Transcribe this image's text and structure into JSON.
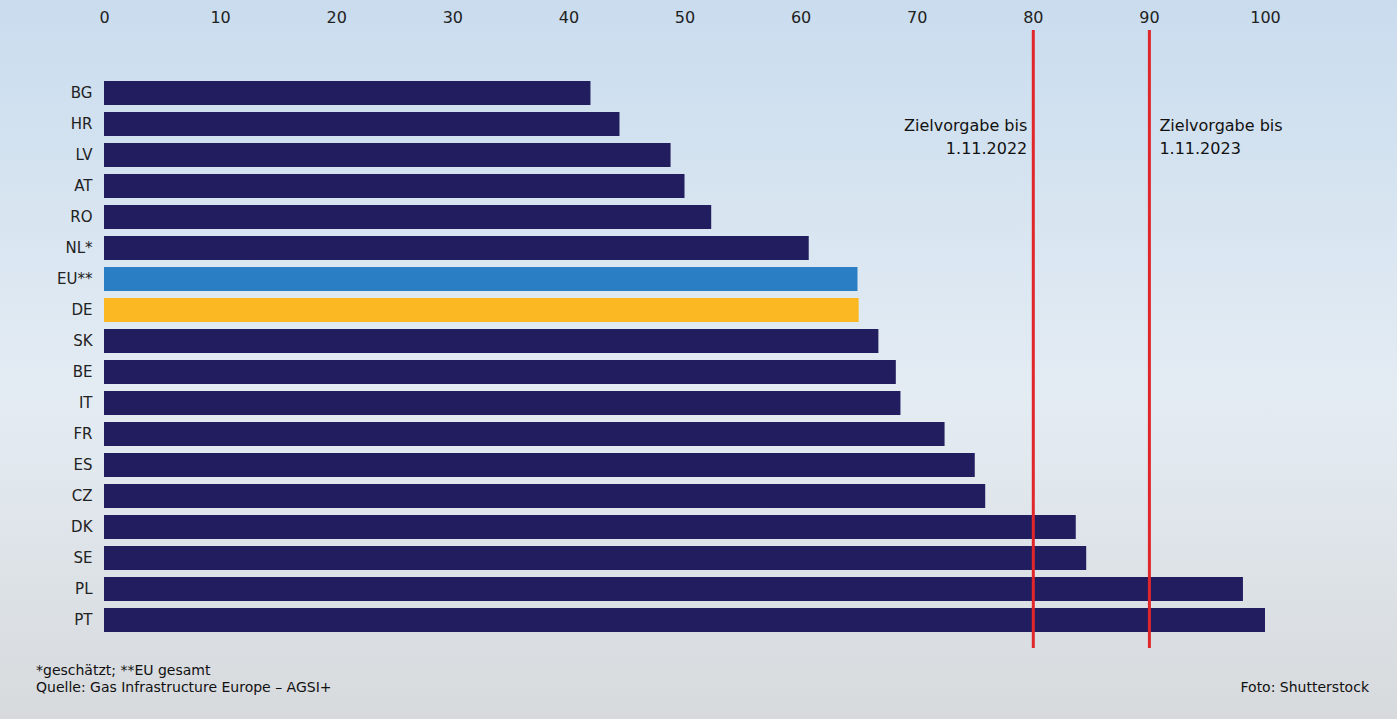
{
  "chart_data": {
    "type": "bar",
    "orientation": "horizontal",
    "categories": [
      "BG",
      "HR",
      "LV",
      "AT",
      "RO",
      "NL*",
      "EU**",
      "DE",
      "SK",
      "BE",
      "IT",
      "FR",
      "ES",
      "CZ",
      "DK",
      "SE",
      "PL",
      "PT"
    ],
    "values": [
      41.9,
      44.4,
      48.8,
      50.0,
      52.3,
      60.7,
      64.9,
      65.0,
      66.7,
      68.2,
      68.6,
      72.4,
      75.0,
      75.9,
      83.7,
      84.6,
      98.1,
      100
    ],
    "colors": [
      "#221d5e",
      "#221d5e",
      "#221d5e",
      "#221d5e",
      "#221d5e",
      "#221d5e",
      "#2a7fc4",
      "#fbb823",
      "#221d5e",
      "#221d5e",
      "#221d5e",
      "#221d5e",
      "#221d5e",
      "#221d5e",
      "#221d5e",
      "#221d5e",
      "#221d5e",
      "#221d5e"
    ],
    "xlim": [
      0,
      100
    ],
    "xticks": [
      0,
      10,
      20,
      30,
      40,
      50,
      60,
      70,
      80,
      90,
      100
    ],
    "grid": false,
    "reference_lines": [
      {
        "value": 80,
        "label": "Zielvorgabe bis 1.11.2022",
        "color": "#e0262b"
      },
      {
        "value": 90,
        "label": "Zielvorgabe bis 1.11.2023",
        "color": "#e0262b"
      }
    ],
    "footnotes": [
      "*geschätzt; **EU gesamt",
      "Quelle: Gas Infrastructure Europe – AGSI+"
    ],
    "credit": "Foto: Shutterstock"
  }
}
